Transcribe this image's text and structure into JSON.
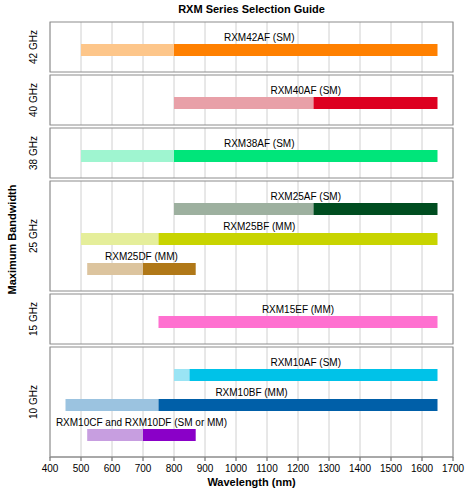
{
  "chart_data": {
    "type": "bar",
    "orientation": "horizontal",
    "title": "RXM Series Selection Guide",
    "xlabel": "Wavelength (nm)",
    "ylabel": "Maximum Bandwidth",
    "xlim": [
      400,
      1700
    ],
    "xticks": [
      400,
      500,
      600,
      700,
      800,
      900,
      1000,
      1100,
      1200,
      1300,
      1400,
      1500,
      1600,
      1700
    ],
    "grid": true,
    "groups": [
      {
        "label": "42 GHz",
        "bars": [
          {
            "name": "RXM42AF (SM)",
            "segments": [
              {
                "start": 500,
                "end": 800,
                "color": "#fdc68a"
              },
              {
                "start": 800,
                "end": 1650,
                "color": "#ff8000"
              }
            ]
          }
        ]
      },
      {
        "label": "40 GHz",
        "bars": [
          {
            "name": "RXM40AF (SM)",
            "segments": [
              {
                "start": 800,
                "end": 1250,
                "color": "#e8a0a8"
              },
              {
                "start": 1250,
                "end": 1650,
                "color": "#dd0020"
              }
            ]
          }
        ]
      },
      {
        "label": "38 GHz",
        "bars": [
          {
            "name": "RXM38AF (SM)",
            "segments": [
              {
                "start": 500,
                "end": 800,
                "color": "#9ff5d0"
              },
              {
                "start": 800,
                "end": 1650,
                "color": "#00e57a"
              }
            ]
          }
        ]
      },
      {
        "label": "25 GHz",
        "bars": [
          {
            "name": "RXM25AF (SM)",
            "segments": [
              {
                "start": 800,
                "end": 1250,
                "color": "#9db09f"
              },
              {
                "start": 1250,
                "end": 1650,
                "color": "#004d20"
              }
            ]
          },
          {
            "name": "RXM25BF (MM)",
            "segments": [
              {
                "start": 500,
                "end": 750,
                "color": "#e5ee9a"
              },
              {
                "start": 750,
                "end": 1650,
                "color": "#c8d400"
              }
            ]
          },
          {
            "name": "RXM25DF (MM)",
            "segments": [
              {
                "start": 520,
                "end": 700,
                "color": "#dcc49e"
              },
              {
                "start": 700,
                "end": 870,
                "color": "#b07818"
              }
            ]
          }
        ]
      },
      {
        "label": "15 GHz",
        "bars": [
          {
            "name": "RXM15EF (MM)",
            "segments": [
              {
                "start": 750,
                "end": 1650,
                "color": "#ff70d0"
              }
            ]
          }
        ]
      },
      {
        "label": "10 GHz",
        "bars": [
          {
            "name": "RXM10AF (SM)",
            "segments": [
              {
                "start": 800,
                "end": 850,
                "color": "#9ae4f4"
              },
              {
                "start": 850,
                "end": 1650,
                "color": "#00c2e8"
              }
            ]
          },
          {
            "name": "RXM10BF (MM)",
            "segments": [
              {
                "start": 450,
                "end": 750,
                "color": "#9bc3e0"
              },
              {
                "start": 750,
                "end": 1650,
                "color": "#005fa8"
              }
            ]
          },
          {
            "name": "RXM10CF and RXM10DF (SM or MM)",
            "segments": [
              {
                "start": 520,
                "end": 700,
                "color": "#c79ee0"
              },
              {
                "start": 700,
                "end": 870,
                "color": "#8a00c8"
              }
            ]
          }
        ]
      }
    ]
  }
}
